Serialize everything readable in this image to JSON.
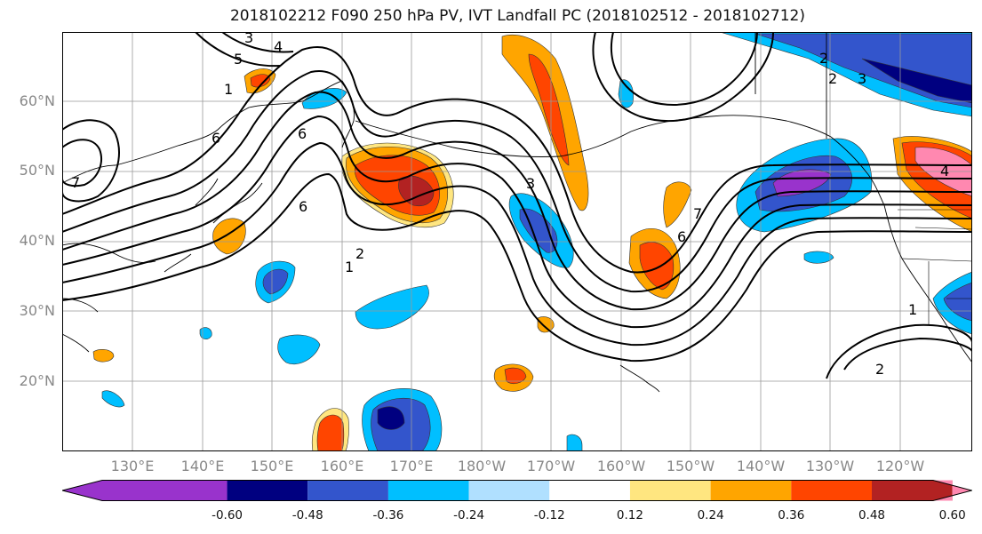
{
  "title": "2018102212 F090 250 hPa PV, IVT Landfall PC (2018102512 - 2018102712)",
  "lat_labels": [
    "60°N",
    "50°N",
    "40°N",
    "30°N",
    "20°N"
  ],
  "lon_labels": [
    "130°E",
    "140°E",
    "150°E",
    "160°E",
    "170°E",
    "180°W",
    "170°W",
    "160°W",
    "150°W",
    "140°W",
    "130°W",
    "120°W"
  ],
  "contour_labels": [
    "3",
    "4",
    "5",
    "1",
    "6",
    "7",
    "6",
    "1",
    "2",
    "3",
    "6",
    "2",
    "7",
    "6",
    "2",
    "3",
    "4",
    "1",
    "2"
  ],
  "colorbar": {
    "ticks": [
      "-0.60",
      "-0.48",
      "-0.36",
      "-0.24",
      "-0.12",
      "0.12",
      "0.24",
      "0.36",
      "0.48",
      "0.60"
    ],
    "colors": [
      "#9933cc",
      "#000080",
      "#3355cc",
      "#00bfff",
      "#b0e0ff",
      "#ffffff",
      "#ffe680",
      "#ffa500",
      "#ff4500",
      "#b22222",
      "#ff88b0"
    ]
  }
}
